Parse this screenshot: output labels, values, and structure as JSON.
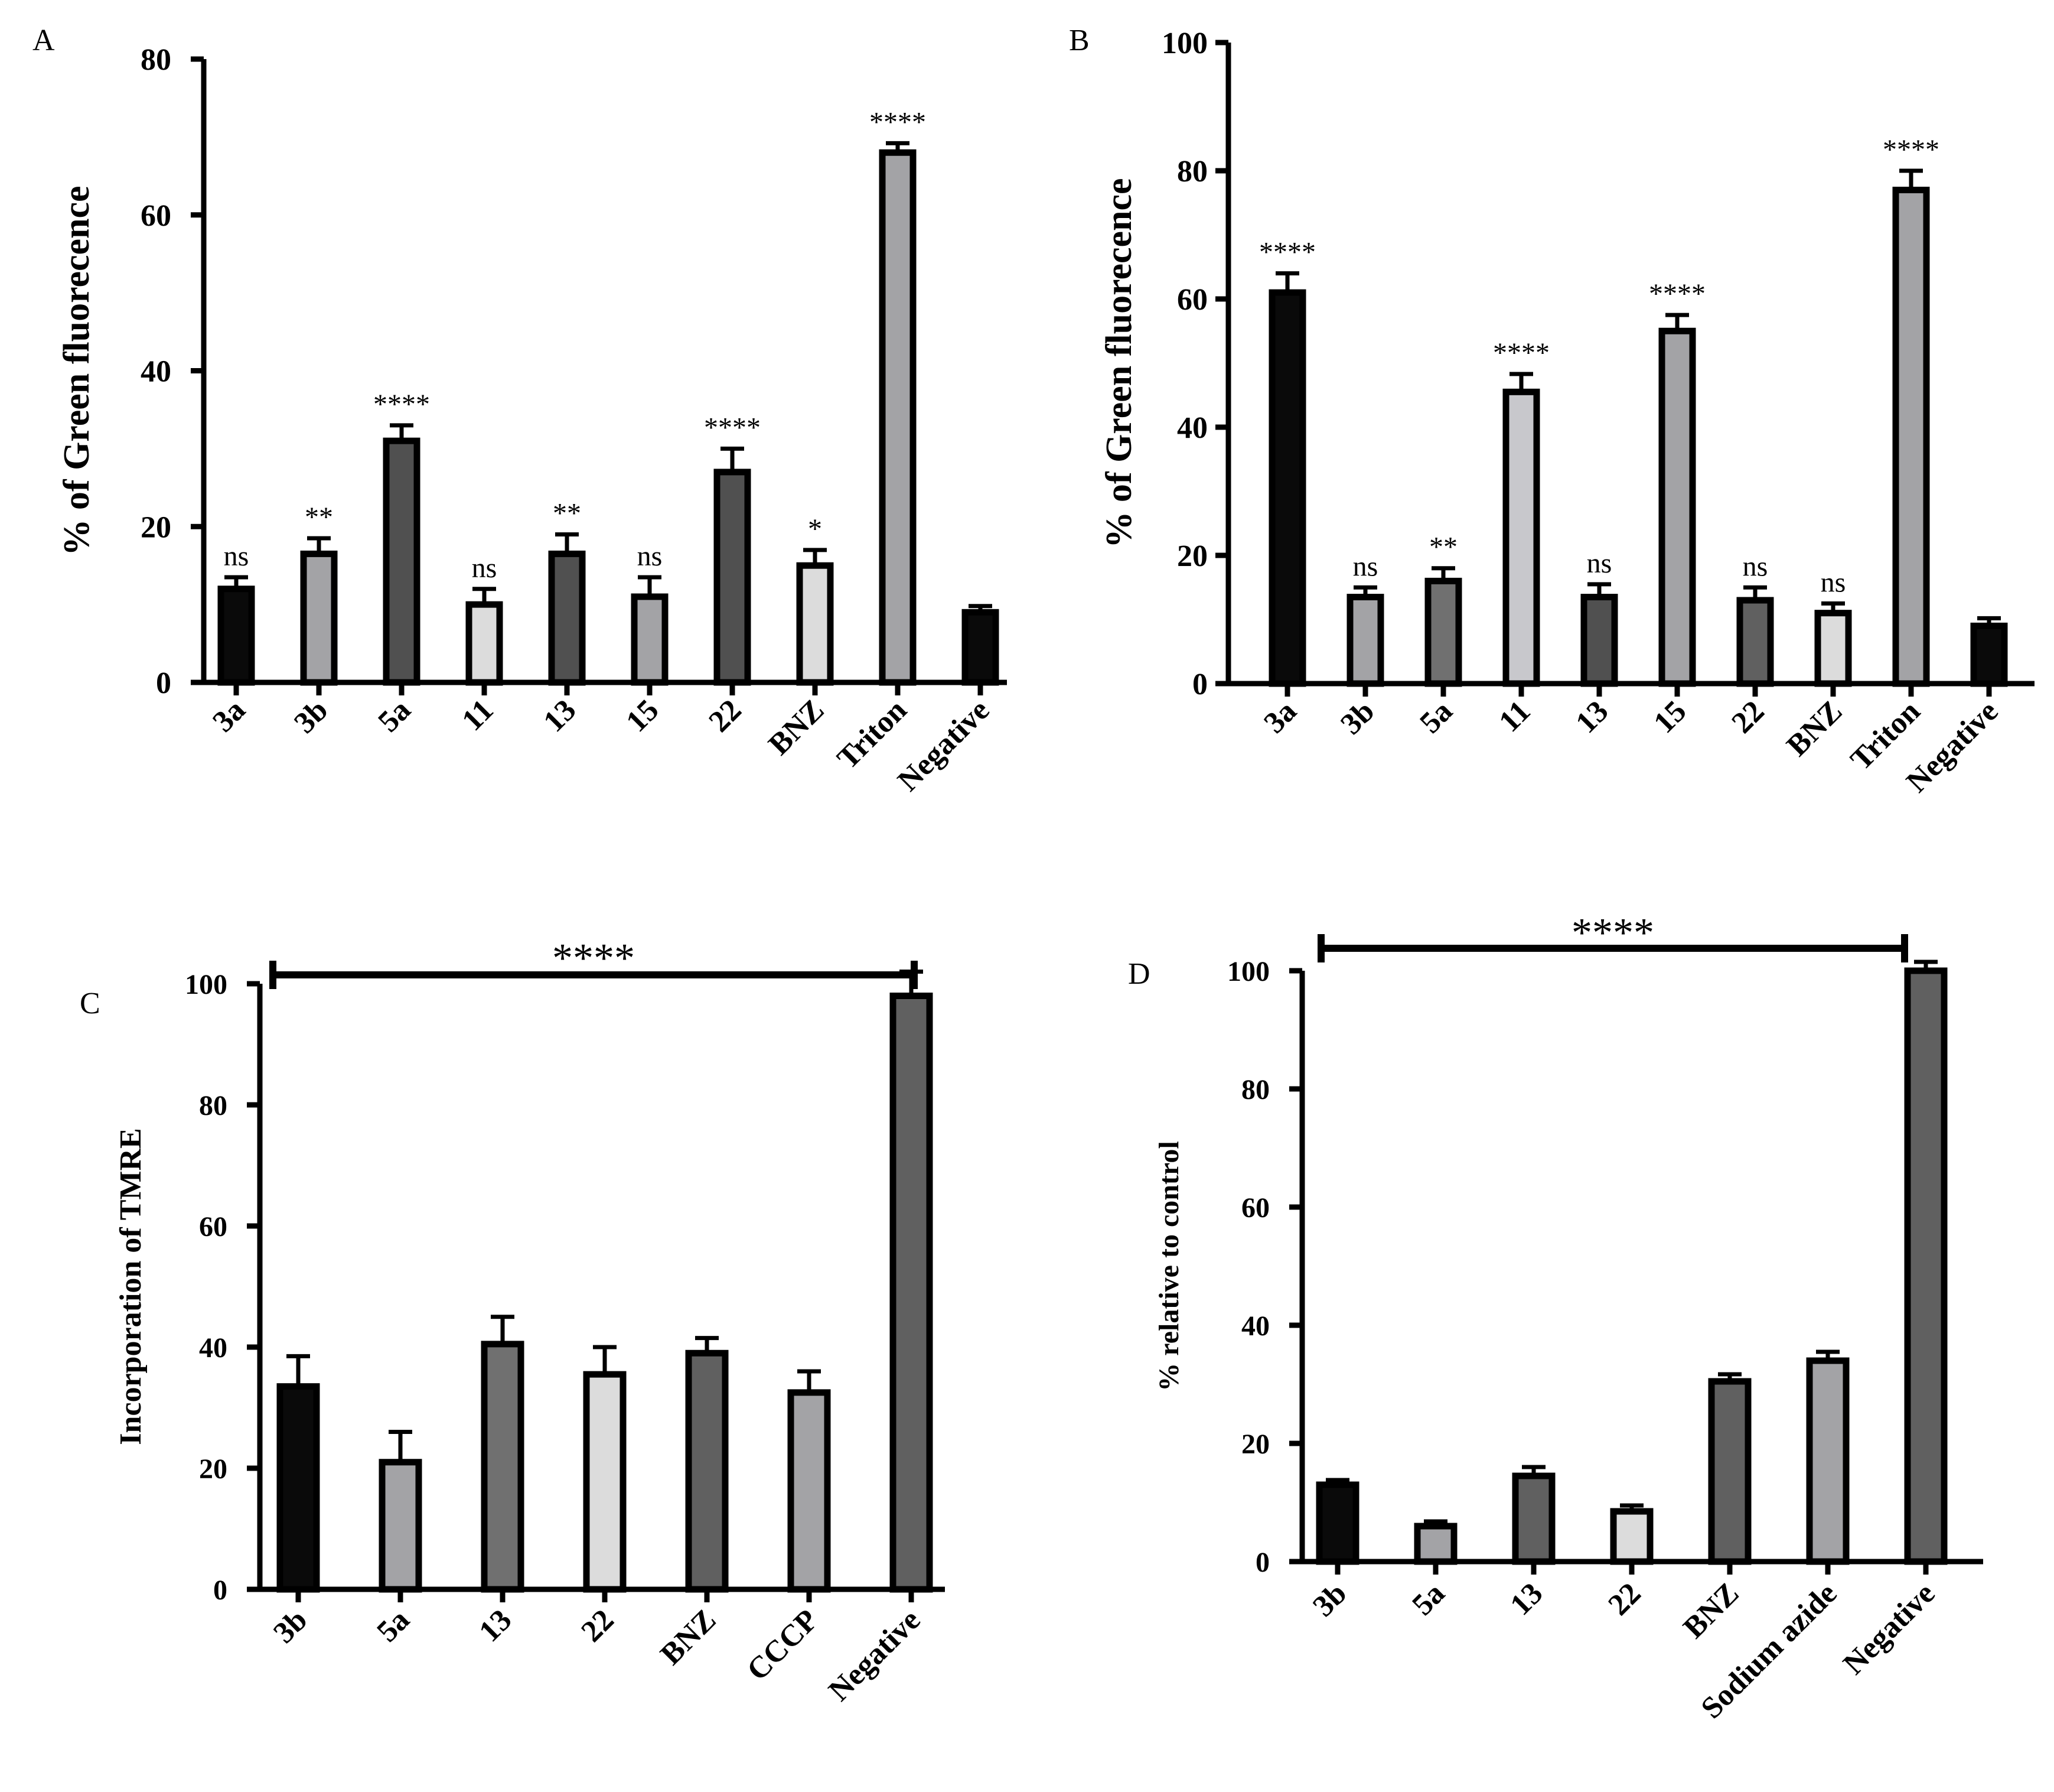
{
  "chart_data": [
    {
      "panel": "A",
      "type": "bar",
      "title": "",
      "xlabel": "",
      "ylabel": "% of Green fluorecence",
      "ylim": [
        0,
        80
      ],
      "yticks": [
        0,
        20,
        40,
        60,
        80
      ],
      "categories": [
        "3a",
        "3b",
        "5a",
        "11",
        "13",
        "15",
        "22",
        "BNZ",
        "Triton",
        "Negative"
      ],
      "values": [
        12,
        16.5,
        31,
        10,
        16.5,
        11,
        27,
        15,
        68,
        9
      ],
      "errors": [
        1.5,
        2,
        2,
        2,
        2.5,
        2.5,
        3,
        2,
        1.2,
        0.8
      ],
      "annotations": [
        "ns",
        "**",
        "****",
        "ns",
        "**",
        "ns",
        "****",
        "*",
        "****",
        ""
      ],
      "fills": [
        "#0a0a0a",
        "#a3a3a6",
        "#505050",
        "#dcdcdc",
        "#505050",
        "#a3a3a6",
        "#505050",
        "#dcdcdc",
        "#a3a3a6",
        "#0a0a0a"
      ]
    },
    {
      "panel": "B",
      "type": "bar",
      "title": "",
      "xlabel": "",
      "ylabel": "% of Green fluorecence",
      "ylim": [
        0,
        100
      ],
      "yticks": [
        0,
        20,
        40,
        60,
        80,
        100
      ],
      "categories": [
        "3a",
        "3b",
        "5a",
        "11",
        "13",
        "15",
        "22",
        "BNZ",
        "Triton",
        "Negative"
      ],
      "values": [
        61,
        13.5,
        16,
        45.5,
        13.5,
        55,
        13,
        11,
        77,
        9
      ],
      "errors": [
        3,
        1.5,
        2,
        2.8,
        2,
        2.5,
        2,
        1.5,
        3,
        1.2
      ],
      "annotations": [
        "****",
        "ns",
        "**",
        "****",
        "ns",
        "****",
        "ns",
        "ns",
        "****",
        ""
      ],
      "fills": [
        "#0a0a0a",
        "#a3a3a6",
        "#707070",
        "#c8c8cc",
        "#505050",
        "#a3a3a6",
        "#606060",
        "#dcdcdc",
        "#a3a3a6",
        "#0a0a0a"
      ]
    },
    {
      "panel": "C",
      "type": "bar",
      "title": "",
      "xlabel": "",
      "ylabel": "Incorporation of TMRE",
      "ylim": [
        0,
        100
      ],
      "yticks": [
        0,
        20,
        40,
        60,
        80,
        100
      ],
      "categories": [
        "3b",
        "5a",
        "13",
        "22",
        "BNZ",
        "CCCP",
        "Negative"
      ],
      "values": [
        33.5,
        21,
        40.5,
        35.5,
        39,
        32.5,
        98
      ],
      "errors": [
        5,
        5,
        4.5,
        4.5,
        2.5,
        3.5,
        4
      ],
      "significance": "****",
      "fills": [
        "#0a0a0a",
        "#a3a3a6",
        "#707070",
        "#dcdcdc",
        "#606060",
        "#a3a3a6",
        "#606060"
      ]
    },
    {
      "panel": "D",
      "type": "bar",
      "title": "",
      "xlabel": "",
      "ylabel": "% relative to control",
      "ylim": [
        0,
        100
      ],
      "yticks": [
        0,
        20,
        40,
        60,
        80,
        100
      ],
      "categories": [
        "3b",
        "5a",
        "13",
        "22",
        "BNZ",
        "Sodium azide",
        "Negative"
      ],
      "values": [
        13,
        6,
        14.5,
        8.5,
        30.5,
        34,
        100
      ],
      "errors": [
        0.8,
        0.8,
        1.5,
        1,
        1.2,
        1.5,
        1.5
      ],
      "significance": "****",
      "fills": [
        "#0a0a0a",
        "#a3a3a6",
        "#606060",
        "#dcdcdc",
        "#606060",
        "#a3a3a6",
        "#606060"
      ]
    }
  ]
}
